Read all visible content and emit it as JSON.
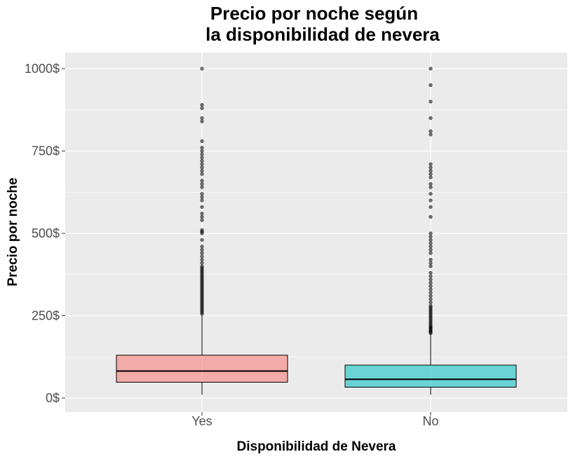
{
  "chart_data": {
    "type": "boxplot",
    "title_line1": "Precio por noche según",
    "title_line2": "la disponibilidad de nevera",
    "xlabel": "Disponibilidad de Nevera",
    "ylabel": "Precio por noche",
    "ylim": [
      -45,
      1050
    ],
    "y_ticks": [
      0,
      250,
      500,
      750,
      1000
    ],
    "y_tick_labels": [
      "0$",
      "250$",
      "500$",
      "750$",
      "1000$"
    ],
    "grid": true,
    "legend": "none",
    "categories": [
      "Yes",
      "No"
    ],
    "colors": {
      "Yes": "#F8766D",
      "No": "#00BFC4"
    },
    "boxes": [
      {
        "category": "Yes",
        "whisker_low": 10,
        "q1": 48,
        "median": 82,
        "q3": 130,
        "whisker_high": 250,
        "outliers": [
          255,
          260,
          265,
          270,
          275,
          280,
          285,
          290,
          295,
          300,
          305,
          310,
          315,
          320,
          325,
          330,
          335,
          340,
          345,
          350,
          355,
          360,
          365,
          370,
          375,
          380,
          385,
          390,
          395,
          400,
          410,
          420,
          430,
          440,
          450,
          460,
          480,
          500,
          505,
          510,
          540,
          550,
          560,
          580,
          600,
          610,
          620,
          640,
          650,
          660,
          680,
          690,
          700,
          710,
          720,
          730,
          740,
          750,
          760,
          780,
          840,
          850,
          880,
          890,
          1000
        ]
      },
      {
        "category": "No",
        "whisker_low": 10,
        "q1": 33,
        "median": 57,
        "q3": 100,
        "whisker_high": 195,
        "outliers": [
          197,
          200,
          203,
          206,
          210,
          213,
          216,
          220,
          225,
          230,
          235,
          240,
          245,
          250,
          255,
          260,
          265,
          270,
          275,
          280,
          290,
          300,
          310,
          320,
          330,
          340,
          350,
          360,
          370,
          380,
          400,
          410,
          420,
          440,
          450,
          460,
          470,
          480,
          490,
          500,
          550,
          580,
          600,
          620,
          640,
          650,
          670,
          680,
          690,
          700,
          710,
          800,
          810,
          850,
          900,
          950,
          1000
        ]
      }
    ]
  }
}
